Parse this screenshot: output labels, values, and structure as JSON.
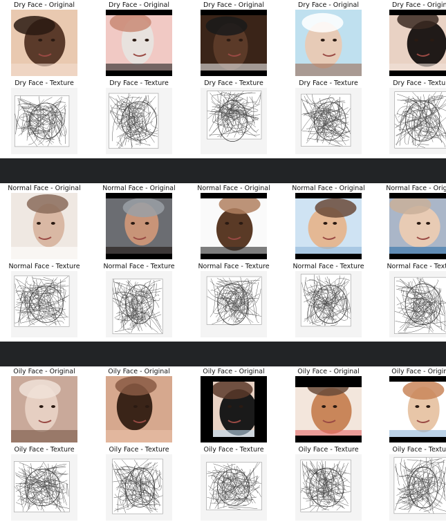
{
  "groups": [
    {
      "key": "dry",
      "original_label": "Dry Face - Original",
      "texture_label": "Dry Face - Texture",
      "images": [
        {
          "original": "two-smiling-women-photo",
          "texture": "two-women-edge-texture"
        },
        {
          "original": "woman-with-towel-mirror-photo",
          "texture": "towel-mirror-edge-texture"
        },
        {
          "original": "man-forehead-closeup-photo",
          "texture": "forehead-edge-texture"
        },
        {
          "original": "cracked-skin-woman-photo",
          "texture": "cracked-skin-edge-texture"
        },
        {
          "original": "asian-woman-selfie-photo",
          "texture": "selfie-edge-texture"
        }
      ]
    },
    {
      "key": "normal",
      "original_label": "Normal Face - Original",
      "texture_label": "Normal Face - Texture",
      "images": [
        {
          "original": "woman-with-towel-photo",
          "texture": "towel-edge-texture"
        },
        {
          "original": "dark-haired-woman-portrait-photo",
          "texture": "portrait-edge-texture"
        },
        {
          "original": "man-with-question-marks-photo",
          "texture": "question-marks-edge-texture"
        },
        {
          "original": "woman-with-gloved-hands-photo",
          "texture": "gloved-hands-edge-texture"
        },
        {
          "original": "woman-outdoors-photo",
          "texture": "outdoors-edge-texture"
        }
      ]
    },
    {
      "key": "oily",
      "original_label": "Oily Face - Original",
      "texture_label": "Oily Face - Texture",
      "images": [
        {
          "original": "woman-eyes-closed-photo",
          "texture": "eyes-closed-edge-texture"
        },
        {
          "original": "eye-closeup-photo",
          "texture": "eye-closeup-edge-texture"
        },
        {
          "original": "young-woman-pout-photo",
          "texture": "pout-edge-texture"
        },
        {
          "original": "woman-with-hearts-photo",
          "texture": "hearts-edge-texture"
        },
        {
          "original": "skin-diagram-photo",
          "texture": "skin-diagram-edge-texture"
        }
      ]
    }
  ],
  "colors": {
    "divider": "#222426",
    "texture_bg": "#f4f4f4",
    "texture_line": "#444444"
  }
}
